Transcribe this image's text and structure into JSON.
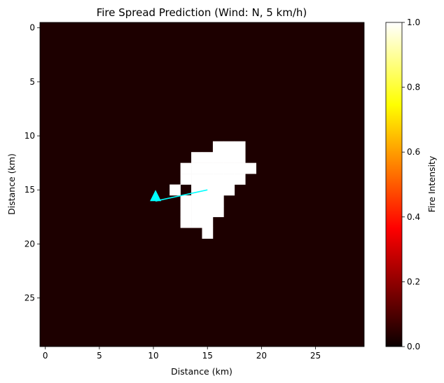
{
  "chart_data": {
    "type": "heatmap",
    "title": "Fire Spread Prediction (Wind: N, 5 km/h)",
    "xlabel": "Distance (km)",
    "ylabel": "Distance (km)",
    "grid_size": 30,
    "xlim": [
      -0.5,
      29.5
    ],
    "ylim": [
      29.5,
      -0.5
    ],
    "x_ticks": [
      0,
      5,
      10,
      15,
      20,
      25
    ],
    "y_ticks": [
      0,
      5,
      10,
      15,
      20,
      25
    ],
    "background_value": 0.0,
    "colormap": "hot",
    "burning_cells_value": 1.0,
    "burning_cells": [
      [
        11,
        16
      ],
      [
        11,
        17
      ],
      [
        11,
        18
      ],
      [
        12,
        14
      ],
      [
        12,
        15
      ],
      [
        12,
        16
      ],
      [
        12,
        17
      ],
      [
        12,
        18
      ],
      [
        13,
        13
      ],
      [
        13,
        14
      ],
      [
        13,
        15
      ],
      [
        13,
        16
      ],
      [
        13,
        17
      ],
      [
        13,
        18
      ],
      [
        13,
        19
      ],
      [
        14,
        13
      ],
      [
        14,
        14
      ],
      [
        14,
        15
      ],
      [
        14,
        16
      ],
      [
        14,
        17
      ],
      [
        14,
        18
      ],
      [
        15,
        12
      ],
      [
        15,
        14
      ],
      [
        15,
        15
      ],
      [
        15,
        16
      ],
      [
        15,
        17
      ],
      [
        16,
        13
      ],
      [
        16,
        14
      ],
      [
        16,
        15
      ],
      [
        16,
        16
      ],
      [
        17,
        13
      ],
      [
        17,
        14
      ],
      [
        17,
        15
      ],
      [
        17,
        16
      ],
      [
        18,
        13
      ],
      [
        18,
        14
      ],
      [
        18,
        15
      ],
      [
        19,
        15
      ]
    ],
    "colorbar": {
      "label": "Fire Intensity",
      "range": [
        0.0,
        1.0
      ],
      "ticks": [
        "0.0",
        "0.2",
        "0.4",
        "0.6",
        "0.8",
        "1.0"
      ]
    },
    "wind_arrow": {
      "direction": "N",
      "color": "#00ffff",
      "start": [
        15,
        15
      ],
      "end": [
        15,
        10.2
      ]
    }
  }
}
